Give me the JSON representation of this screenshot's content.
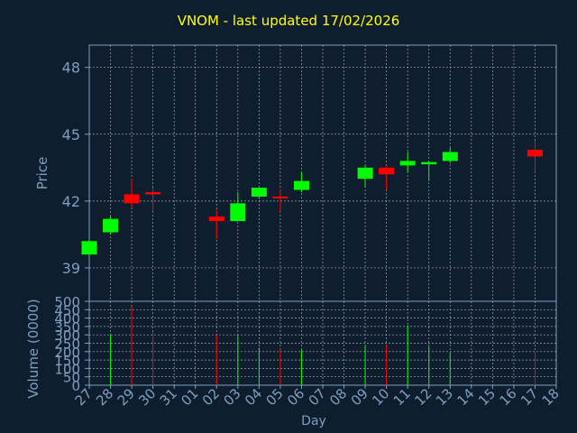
{
  "chart_data": [
    {
      "type": "candlestick",
      "title": "VNOM - last updated 17/02/2026",
      "ylabel": "Price",
      "ylim": [
        37.5,
        49.0
      ],
      "yticks": [
        39,
        42,
        45,
        48
      ],
      "grid": true,
      "x": [
        "27",
        "28",
        "29",
        "30",
        "31",
        "01",
        "02",
        "03",
        "04",
        "05",
        "06",
        "07",
        "08",
        "09",
        "10",
        "11",
        "12",
        "13",
        "14",
        "15",
        "16",
        "17",
        "18"
      ],
      "candles": [
        {
          "x": "27",
          "open": 39.6,
          "close": 40.2,
          "high": 40.3,
          "low": 39.5
        },
        {
          "x": "28",
          "open": 40.6,
          "close": 41.2,
          "high": 41.3,
          "low": 40.5
        },
        {
          "x": "29",
          "open": 42.3,
          "close": 41.9,
          "high": 43.0,
          "low": 41.7
        },
        {
          "x": "30",
          "open": 42.4,
          "close": 42.3,
          "high": 42.6,
          "low": 41.5
        },
        {
          "x": "02",
          "open": 41.3,
          "close": 41.1,
          "high": 41.6,
          "low": 40.3
        },
        {
          "x": "03",
          "open": 41.1,
          "close": 41.9,
          "high": 42.4,
          "low": 41.1
        },
        {
          "x": "04",
          "open": 42.2,
          "close": 42.6,
          "high": 42.6,
          "low": 42.1
        },
        {
          "x": "05",
          "open": 42.2,
          "close": 42.15,
          "high": 42.5,
          "low": 41.5
        },
        {
          "x": "06",
          "open": 42.5,
          "close": 42.9,
          "high": 43.3,
          "low": 42.4
        },
        {
          "x": "09",
          "open": 43.0,
          "close": 43.5,
          "high": 43.6,
          "low": 42.6
        },
        {
          "x": "10",
          "open": 43.5,
          "close": 43.2,
          "high": 43.6,
          "low": 42.5
        },
        {
          "x": "11",
          "open": 43.6,
          "close": 43.8,
          "high": 44.2,
          "low": 43.3
        },
        {
          "x": "12",
          "open": 43.65,
          "close": 43.75,
          "high": 43.8,
          "low": 42.9
        },
        {
          "x": "13",
          "open": 43.8,
          "close": 44.2,
          "high": 44.4,
          "low": 43.7
        },
        {
          "x": "17",
          "open": 44.3,
          "close": 44.0,
          "high": 44.7,
          "low": 43.3
        }
      ]
    },
    {
      "type": "bar",
      "ylabel": "Volume (0000)",
      "xlabel": "Day",
      "ylim": [
        0,
        500
      ],
      "yticks": [
        0,
        50,
        100,
        150,
        200,
        250,
        300,
        350,
        400,
        450,
        500
      ],
      "x_tick_labels": [
        "27",
        "28",
        "29",
        "30",
        "31",
        "01",
        "02",
        "03",
        "04",
        "05",
        "06",
        "07",
        "08",
        "09",
        "10",
        "11",
        "12",
        "13",
        "14",
        "15",
        "16",
        "17",
        "18"
      ],
      "values": [
        {
          "x": "28",
          "volume": 300,
          "direction": "up"
        },
        {
          "x": "29",
          "volume": 470,
          "direction": "down"
        },
        {
          "x": "30",
          "volume": 315,
          "direction": "down"
        },
        {
          "x": "02",
          "volume": 300,
          "direction": "down"
        },
        {
          "x": "03",
          "volume": 295,
          "direction": "up"
        },
        {
          "x": "04",
          "volume": 225,
          "direction": "up"
        },
        {
          "x": "05",
          "volume": 215,
          "direction": "down"
        },
        {
          "x": "06",
          "volume": 210,
          "direction": "up"
        },
        {
          "x": "09",
          "volume": 235,
          "direction": "up"
        },
        {
          "x": "10",
          "volume": 240,
          "direction": "down"
        },
        {
          "x": "11",
          "volume": 355,
          "direction": "up"
        },
        {
          "x": "12",
          "volume": 230,
          "direction": "up"
        },
        {
          "x": "13",
          "volume": 195,
          "direction": "up"
        },
        {
          "x": "17",
          "volume": 200,
          "direction": "down"
        }
      ]
    }
  ],
  "colors": {
    "background": "#0f1e2f",
    "up": "#00ff00",
    "down": "#ff0000",
    "axis": "#7e9fbf",
    "text": "#7e9fbf",
    "title": "#ffff00",
    "grid": "#c8c8c8"
  }
}
